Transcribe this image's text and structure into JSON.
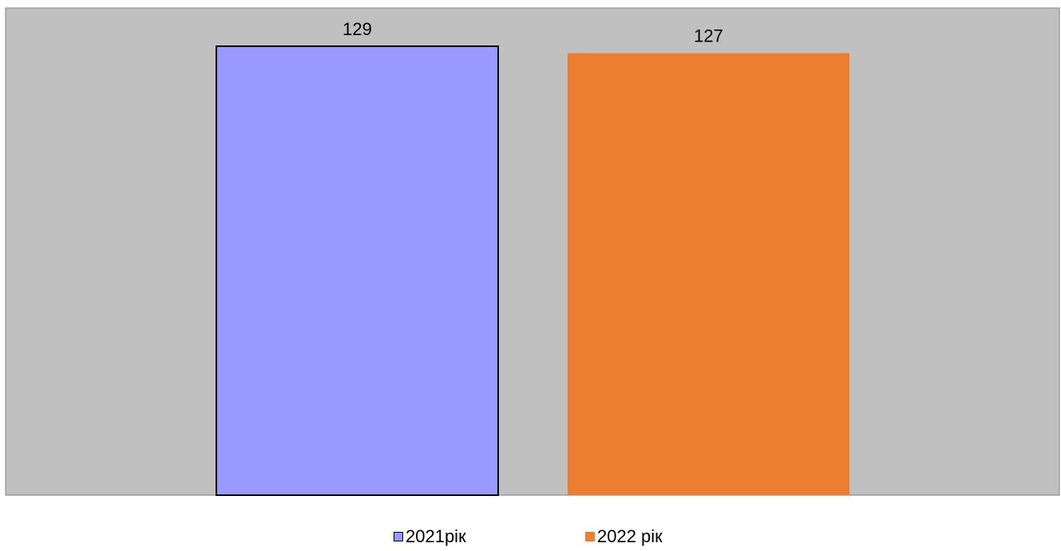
{
  "chart_data": {
    "type": "bar",
    "title": "",
    "xlabel": "",
    "ylabel": "",
    "categories": [
      ""
    ],
    "series": [
      {
        "name": "2021рік",
        "values": [
          129
        ],
        "color": "#9999ff",
        "outline": "#000000"
      },
      {
        "name": "2022 рік",
        "values": [
          127
        ],
        "color": "#ed7d31",
        "outline": "none"
      }
    ],
    "data_labels": [
      "129",
      "127"
    ],
    "ylim": [
      0,
      140
    ],
    "plot_background": "#c0c0c0",
    "grid": false,
    "axes_visible": false,
    "legend_position": "bottom"
  }
}
